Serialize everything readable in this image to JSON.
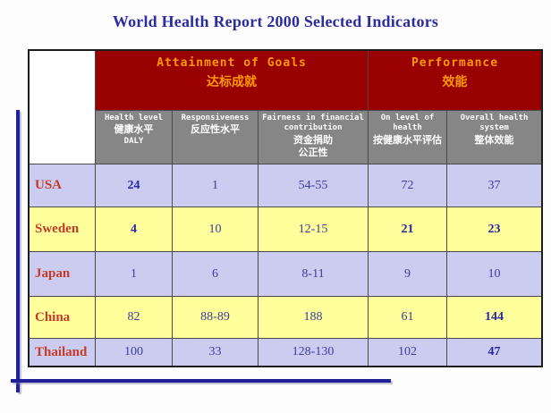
{
  "title": "World Health Report 2000 Selected Indicators",
  "colors": {
    "title_navy": "#2c2ca0",
    "header_red": "#990000",
    "header_text_orange": "#ff9a00",
    "subheader_gray": "#868686",
    "row_lavender": "#ccccf0",
    "row_yellow": "#ffff9b",
    "country_red": "#c43a28",
    "value_navy": "#3c3c9e",
    "decor_line_navy": "#202098"
  },
  "table": {
    "groups": [
      {
        "en": "Attainment of Goals",
        "zh": "达标成就"
      },
      {
        "en": "Performance",
        "zh": "效能"
      }
    ],
    "columns": [
      {
        "lines": [
          "Health level",
          "健康水平",
          "DALY"
        ]
      },
      {
        "lines": [
          "Responsiveness",
          "反应性水平"
        ]
      },
      {
        "lines": [
          "Fairness in financial",
          "contribution",
          "资金捐助",
          "公正性"
        ]
      },
      {
        "lines": [
          "On level of",
          "health",
          "按健康水平评估"
        ]
      },
      {
        "lines": [
          "Overall health",
          "system",
          "整体效能"
        ]
      }
    ],
    "rows": [
      {
        "country": "USA",
        "values": [
          "24",
          "1",
          "54-55",
          "72",
          "37"
        ],
        "bold": [
          true,
          false,
          false,
          false,
          false
        ]
      },
      {
        "country": "Sweden",
        "values": [
          "4",
          "10",
          "12-15",
          "21",
          "23"
        ],
        "bold": [
          true,
          false,
          false,
          true,
          true
        ]
      },
      {
        "country": "Japan",
        "values": [
          "1",
          "6",
          "8-11",
          "9",
          "10"
        ],
        "bold": [
          false,
          false,
          false,
          false,
          false
        ]
      },
      {
        "country": "China",
        "values": [
          "82",
          "88-89",
          "188",
          "61",
          "144"
        ],
        "bold": [
          false,
          false,
          false,
          false,
          true
        ]
      },
      {
        "country": "Thailand",
        "values": [
          "100",
          "33",
          "128-130",
          "102",
          "47"
        ],
        "bold": [
          false,
          false,
          false,
          false,
          true
        ]
      }
    ]
  }
}
